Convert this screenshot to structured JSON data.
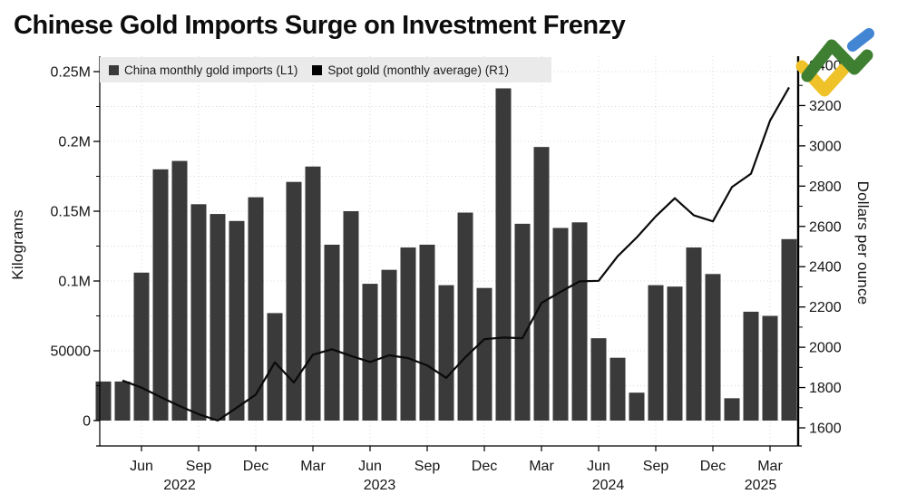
{
  "header": {
    "title": "Chinese Gold Imports Surge on Investment Frenzy"
  },
  "logo": {
    "name": "broker-logo",
    "colors": {
      "green": "#3e7f31",
      "yellow": "#efc229",
      "blue": "#4285d2"
    }
  },
  "colors": {
    "bar": "#3a3a3a",
    "line": "#0a0a0a",
    "grid": "#d8d8d8",
    "legend_background": "#eaeaea"
  },
  "chart_data": {
    "type": "bar+line",
    "title": "Chinese Gold Imports Surge on Investment Frenzy",
    "months": [
      "Apr 2022",
      "May 2022",
      "Jun 2022",
      "Jul 2022",
      "Aug 2022",
      "Sep 2022",
      "Oct 2022",
      "Nov 2022",
      "Dec 2022",
      "Jan 2023",
      "Feb 2023",
      "Mar 2023",
      "Apr 2023",
      "May 2023",
      "Jun 2023",
      "Jul 2023",
      "Aug 2023",
      "Sep 2023",
      "Oct 2023",
      "Nov 2023",
      "Dec 2023",
      "Jan 2024",
      "Feb 2024",
      "Mar 2024",
      "Apr 2024",
      "May 2024",
      "Jun 2024",
      "Jul 2024",
      "Aug 2024",
      "Sep 2024",
      "Oct 2024",
      "Nov 2024",
      "Dec 2024",
      "Jan 2025",
      "Feb 2025",
      "Mar 2025",
      "Apr 2025"
    ],
    "series": [
      {
        "name": "China monthly gold imports (L1)",
        "type": "bar",
        "axis": "L1",
        "unit": "kilograms",
        "color": "#3a3a3a",
        "values": [
          28000,
          28000,
          106000,
          180000,
          186000,
          155000,
          148000,
          143000,
          160000,
          77000,
          171000,
          182000,
          126000,
          150000,
          98000,
          108000,
          124000,
          126000,
          97000,
          149000,
          95000,
          238000,
          141000,
          196000,
          138000,
          142000,
          59000,
          45000,
          20000,
          97000,
          96000,
          124000,
          105000,
          16000,
          78000,
          75000,
          130000
        ]
      },
      {
        "name": "Spot gold (monthly average) (R1)",
        "type": "line",
        "axis": "R1",
        "unit": "dollars per ounce",
        "color": "#0a0a0a",
        "values": [
          null,
          1835,
          1800,
          1753,
          1708,
          1668,
          1636,
          1700,
          1765,
          1925,
          1825,
          1963,
          1990,
          1957,
          1927,
          1960,
          1946,
          1910,
          1848,
          1950,
          2040,
          2048,
          2045,
          2220,
          2275,
          2327,
          2330,
          2452,
          2545,
          2650,
          2740,
          2655,
          2625,
          2795,
          2862,
          3125,
          3290
        ]
      }
    ],
    "left_axis": {
      "title": "Kilograms",
      "range": [
        0,
        250000
      ],
      "minor_step": 25000,
      "ticks": [
        {
          "v": 0,
          "label": "0"
        },
        {
          "v": 50000,
          "label": "50000"
        },
        {
          "v": 100000,
          "label": "0.1M"
        },
        {
          "v": 150000,
          "label": "0.15M"
        },
        {
          "v": 200000,
          "label": "0.2M"
        },
        {
          "v": 250000,
          "label": "0.25M"
        }
      ]
    },
    "right_axis": {
      "title": "Dollars per ounce",
      "range": [
        1600,
        3400
      ],
      "minor_step": 100,
      "ticks": [
        1600,
        1800,
        2000,
        2200,
        2400,
        2600,
        2800,
        3000,
        3200,
        3400
      ]
    },
    "x_axis": {
      "quarters": [
        {
          "i": 2,
          "label": "Jun"
        },
        {
          "i": 5,
          "label": "Sep"
        },
        {
          "i": 8,
          "label": "Dec"
        },
        {
          "i": 11,
          "label": "Mar"
        },
        {
          "i": 14,
          "label": "Jun"
        },
        {
          "i": 17,
          "label": "Sep"
        },
        {
          "i": 20,
          "label": "Dec"
        },
        {
          "i": 23,
          "label": "Mar"
        },
        {
          "i": 26,
          "label": "Jun"
        },
        {
          "i": 29,
          "label": "Sep"
        },
        {
          "i": 32,
          "label": "Dec"
        },
        {
          "i": 35,
          "label": "Mar"
        }
      ],
      "years": [
        {
          "label": "2022",
          "from": 0,
          "to": 8
        },
        {
          "label": "2023",
          "from": 9,
          "to": 20
        },
        {
          "label": "2024",
          "from": 21,
          "to": 32
        },
        {
          "label": "2025",
          "from": 33,
          "to": 36
        }
      ]
    },
    "legend": [
      {
        "label": "China monthly gold imports (L1)",
        "swatch": "#3a3a3a"
      },
      {
        "label": "Spot gold (monthly average) (R1)",
        "swatch": "#000000"
      }
    ],
    "grid": {
      "horizontal_step": 25000,
      "style": "dotted",
      "vertical": "quarterly"
    }
  }
}
